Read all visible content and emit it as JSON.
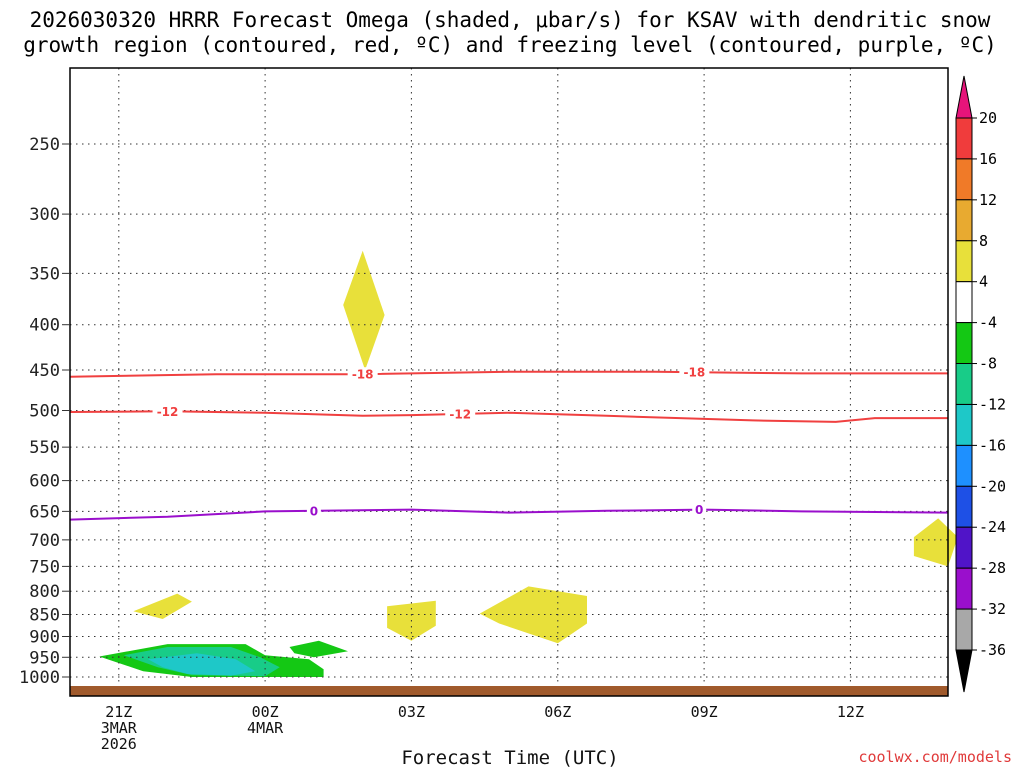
{
  "chart_data": {
    "type": "contour",
    "title_line1": "2026030320 HRRR Forecast Omega (shaded, μbar/s) for KSAV with dendritic snow",
    "title_line2": "growth region (contoured, red, ºC) and freezing level (contoured, purple, ºC)",
    "xlabel": "Forecast Time (UTC)",
    "credit": "coolwx.com/models",
    "x_hours_range": [
      -1,
      17
    ],
    "x_ticks": [
      {
        "hour": 0,
        "lines": [
          "21Z",
          "3MAR",
          "2026"
        ]
      },
      {
        "hour": 3,
        "lines": [
          "00Z",
          "4MAR"
        ]
      },
      {
        "hour": 6,
        "lines": [
          "03Z"
        ]
      },
      {
        "hour": 9,
        "lines": [
          "06Z"
        ]
      },
      {
        "hour": 12,
        "lines": [
          "09Z"
        ]
      },
      {
        "hour": 15,
        "lines": [
          "12Z"
        ]
      }
    ],
    "y_ticks": [
      250,
      300,
      350,
      400,
      450,
      500,
      550,
      600,
      650,
      700,
      750,
      800,
      850,
      900,
      950,
      1000
    ],
    "y_range_hpa": [
      200,
      1000
    ],
    "contours": [
      {
        "name": "-18C isotherm",
        "color": "#f04040",
        "label": "-18",
        "label_hours": [
          5.0,
          11.8
        ],
        "points": [
          [
            -1,
            458
          ],
          [
            2,
            455
          ],
          [
            5,
            455
          ],
          [
            8,
            452
          ],
          [
            11,
            452
          ],
          [
            14,
            454
          ],
          [
            17,
            454
          ]
        ]
      },
      {
        "name": "-12C isotherm",
        "color": "#f04040",
        "label": "-12",
        "label_hours": [
          1.0,
          7.0
        ],
        "points": [
          [
            -1,
            502
          ],
          [
            1,
            501
          ],
          [
            3,
            503
          ],
          [
            5,
            507
          ],
          [
            6,
            506
          ],
          [
            8,
            503
          ],
          [
            10,
            507
          ],
          [
            13,
            513
          ],
          [
            14.7,
            515
          ],
          [
            15.5,
            510
          ],
          [
            17,
            510
          ]
        ]
      },
      {
        "name": "0C freezing level",
        "color": "#9a0fcc",
        "label": "0",
        "label_hours": [
          4.0,
          11.9
        ],
        "points": [
          [
            -1,
            664
          ],
          [
            1,
            659
          ],
          [
            3,
            650
          ],
          [
            6,
            647
          ],
          [
            8,
            652
          ],
          [
            10,
            649
          ],
          [
            12,
            647
          ],
          [
            14,
            650
          ],
          [
            17,
            652
          ]
        ]
      }
    ],
    "shaded_regions": [
      {
        "value_bin": "4 to 8",
        "color": "#e8e03a",
        "points": [
          [
            5.0,
            330
          ],
          [
            5.45,
            390
          ],
          [
            5.05,
            450
          ],
          [
            4.6,
            380
          ]
        ]
      },
      {
        "value_bin": "4 to 8",
        "color": "#e8e03a",
        "points": [
          [
            0.3,
            843
          ],
          [
            1.2,
            805
          ],
          [
            1.5,
            822
          ],
          [
            0.9,
            860
          ]
        ]
      },
      {
        "value_bin": "4 to 8",
        "color": "#e8e03a",
        "points": [
          [
            5.5,
            832
          ],
          [
            6.5,
            820
          ],
          [
            6.5,
            875
          ],
          [
            6.0,
            910
          ],
          [
            5.5,
            880
          ]
        ]
      },
      {
        "value_bin": "4 to 8",
        "color": "#e8e03a",
        "points": [
          [
            7.4,
            848
          ],
          [
            8.4,
            790
          ],
          [
            9.6,
            810
          ],
          [
            9.6,
            870
          ],
          [
            9.0,
            916
          ],
          [
            7.8,
            870
          ]
        ]
      },
      {
        "value_bin": "4 to 8",
        "color": "#e8e03a",
        "points": [
          [
            16.3,
            695
          ],
          [
            16.8,
            662
          ],
          [
            17.2,
            695
          ],
          [
            17.0,
            750
          ],
          [
            16.3,
            730
          ]
        ]
      },
      {
        "value_bin": "-8 to -4",
        "color": "#14c814",
        "points": [
          [
            3.5,
            925
          ],
          [
            4.1,
            910
          ],
          [
            4.7,
            935
          ],
          [
            4.0,
            950
          ],
          [
            3.6,
            940
          ]
        ]
      },
      {
        "value_bin": "-8 to -4",
        "color": "#14c814",
        "points": [
          [
            -0.4,
            948
          ],
          [
            1.0,
            918
          ],
          [
            2.6,
            918
          ],
          [
            3.0,
            945
          ],
          [
            3.9,
            955
          ],
          [
            4.2,
            980
          ],
          [
            4.2,
            1000
          ],
          [
            1.5,
            1000
          ],
          [
            0.5,
            985
          ]
        ]
      },
      {
        "value_bin": "-12 to -8",
        "color": "#18cc88",
        "points": [
          [
            0.1,
            945
          ],
          [
            1.0,
            925
          ],
          [
            2.3,
            925
          ],
          [
            2.9,
            950
          ],
          [
            3.3,
            975
          ],
          [
            3.0,
            998
          ],
          [
            1.5,
            995
          ],
          [
            0.8,
            975
          ]
        ]
      },
      {
        "value_bin": "-16 to -12",
        "color": "#1ec8c8",
        "points": [
          [
            0.6,
            955
          ],
          [
            1.6,
            940
          ],
          [
            2.4,
            955
          ],
          [
            2.8,
            985
          ],
          [
            2.3,
            997
          ],
          [
            1.4,
            992
          ],
          [
            0.9,
            975
          ]
        ]
      }
    ],
    "ground_color": "#a05a2c",
    "colorbar": {
      "ticks": [
        20,
        16,
        12,
        8,
        4,
        -4,
        -8,
        -12,
        -16,
        -20,
        -24,
        -28,
        -32,
        -36
      ],
      "bins": [
        {
          "color": "#f03c3c"
        },
        {
          "color": "#f07a28"
        },
        {
          "color": "#e8aa30"
        },
        {
          "color": "#e8e03a"
        },
        {
          "color": "#ffffff"
        },
        {
          "color": "#14c814"
        },
        {
          "color": "#18cc88"
        },
        {
          "color": "#1ec8c8"
        },
        {
          "color": "#1e90ff"
        },
        {
          "color": "#1e50e6"
        },
        {
          "color": "#5014c8"
        },
        {
          "color": "#9a0fcc"
        },
        {
          "color": "#a8a8a8"
        }
      ],
      "top_arrow_color": "#e6147a",
      "bottom_arrow_color": "#000000"
    }
  }
}
